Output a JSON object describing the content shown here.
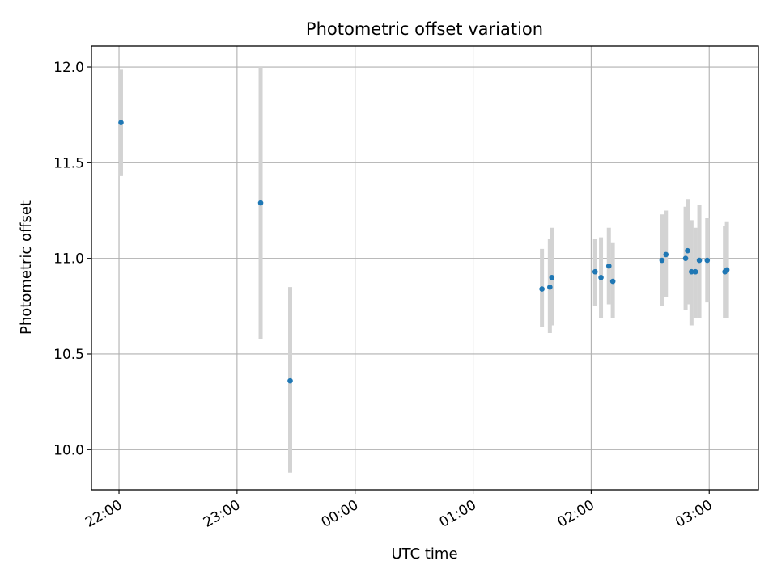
{
  "chart_data": {
    "type": "scatter",
    "title": "Photometric offset variation",
    "xlabel": "UTC time",
    "ylabel": "Photometric offset",
    "x_unit": "UTC date-time",
    "xlim": [
      "2023-01-01T21:46:00",
      "2023-01-02T03:25:00"
    ],
    "ylim": [
      9.79,
      12.11
    ],
    "x_ticks": [
      {
        "value": "2023-01-01T22:00:00",
        "label": "22:00"
      },
      {
        "value": "2023-01-01T23:00:00",
        "label": "23:00"
      },
      {
        "value": "2023-01-02T00:00:00",
        "label": "00:00"
      },
      {
        "value": "2023-01-02T01:00:00",
        "label": "01:00"
      },
      {
        "value": "2023-01-02T02:00:00",
        "label": "02:00"
      },
      {
        "value": "2023-01-02T03:00:00",
        "label": "03:00"
      }
    ],
    "y_ticks": [
      {
        "value": 10.0,
        "label": "10.0"
      },
      {
        "value": 10.5,
        "label": "10.5"
      },
      {
        "value": 11.0,
        "label": "11.0"
      },
      {
        "value": 11.5,
        "label": "11.5"
      },
      {
        "value": 12.0,
        "label": "12.0"
      }
    ],
    "grid": true,
    "marker_color": "#1f77b4",
    "errorbar_color": "#d3d3d3",
    "points": [
      {
        "x": "2023-01-01T22:01:00",
        "y": 11.71,
        "err_low": 11.43,
        "err_high": 11.99
      },
      {
        "x": "2023-01-01T23:12:00",
        "y": 11.29,
        "err_low": 10.58,
        "err_high": 12.0
      },
      {
        "x": "2023-01-01T23:27:00",
        "y": 10.36,
        "err_low": 9.88,
        "err_high": 10.85
      },
      {
        "x": "2023-01-02T01:35:00",
        "y": 10.84,
        "err_low": 10.64,
        "err_high": 11.05
      },
      {
        "x": "2023-01-02T01:39:00",
        "y": 10.85,
        "err_low": 10.61,
        "err_high": 11.1
      },
      {
        "x": "2023-01-02T01:40:00",
        "y": 10.9,
        "err_low": 10.65,
        "err_high": 11.16
      },
      {
        "x": "2023-01-02T02:02:00",
        "y": 10.93,
        "err_low": 10.75,
        "err_high": 11.1
      },
      {
        "x": "2023-01-02T02:05:00",
        "y": 10.9,
        "err_low": 10.69,
        "err_high": 11.11
      },
      {
        "x": "2023-01-02T02:09:00",
        "y": 10.96,
        "err_low": 10.76,
        "err_high": 11.16
      },
      {
        "x": "2023-01-02T02:11:00",
        "y": 10.88,
        "err_low": 10.69,
        "err_high": 11.08
      },
      {
        "x": "2023-01-02T02:36:00",
        "y": 10.99,
        "err_low": 10.75,
        "err_high": 11.23
      },
      {
        "x": "2023-01-02T02:38:00",
        "y": 11.02,
        "err_low": 10.8,
        "err_high": 11.25
      },
      {
        "x": "2023-01-02T02:48:00",
        "y": 11.0,
        "err_low": 10.73,
        "err_high": 11.27
      },
      {
        "x": "2023-01-02T02:49:00",
        "y": 11.04,
        "err_low": 10.76,
        "err_high": 11.31
      },
      {
        "x": "2023-01-02T02:51:00",
        "y": 10.93,
        "err_low": 10.65,
        "err_high": 11.2
      },
      {
        "x": "2023-01-02T02:53:00",
        "y": 10.93,
        "err_low": 10.69,
        "err_high": 11.16
      },
      {
        "x": "2023-01-02T02:55:00",
        "y": 10.99,
        "err_low": 10.69,
        "err_high": 11.28
      },
      {
        "x": "2023-01-02T02:59:00",
        "y": 10.99,
        "err_low": 10.77,
        "err_high": 11.21
      },
      {
        "x": "2023-01-02T03:08:00",
        "y": 10.93,
        "err_low": 10.69,
        "err_high": 11.17
      },
      {
        "x": "2023-01-02T03:09:00",
        "y": 10.94,
        "err_low": 10.69,
        "err_high": 11.19
      }
    ]
  }
}
